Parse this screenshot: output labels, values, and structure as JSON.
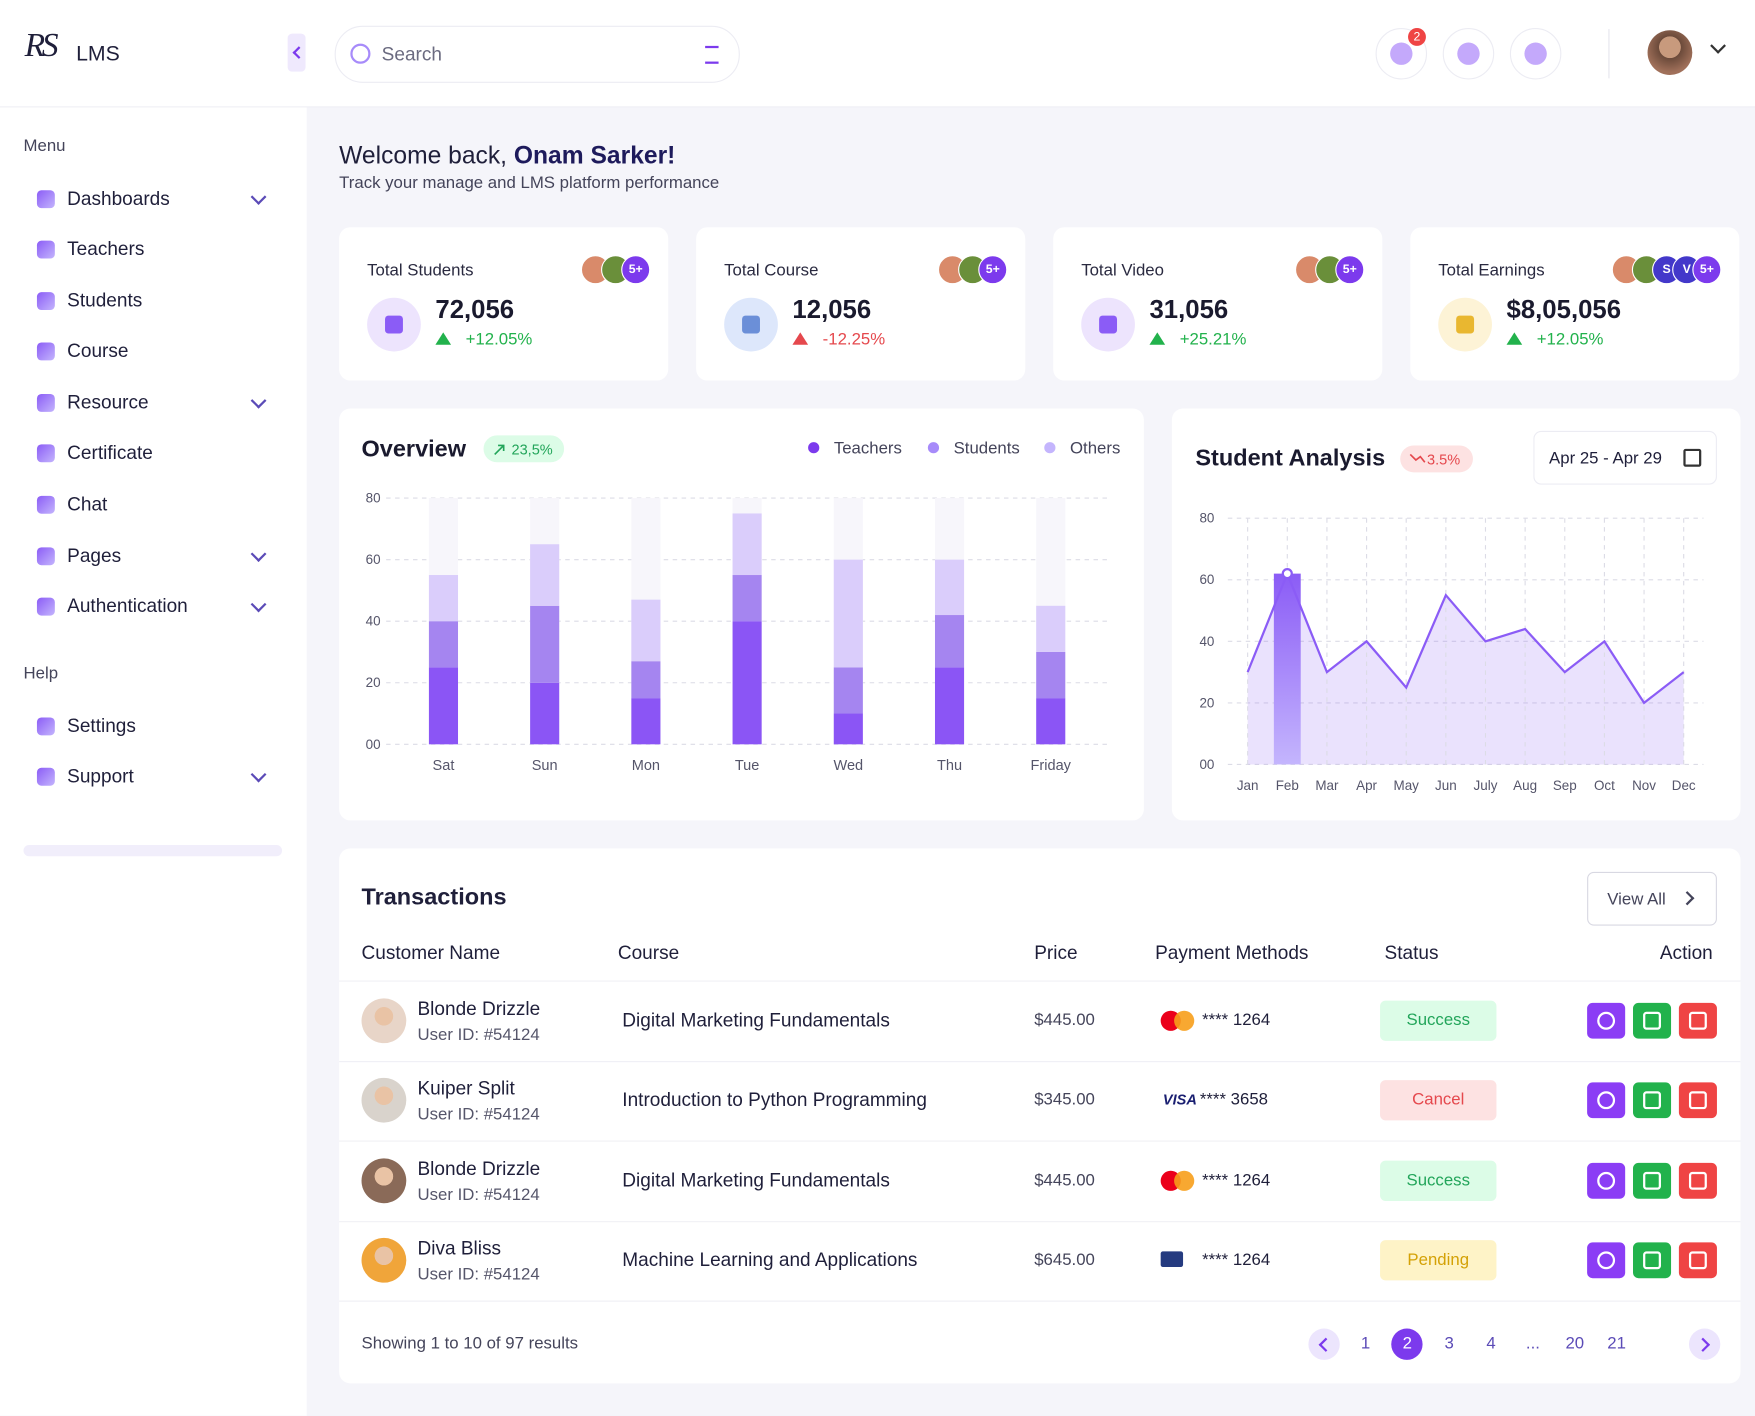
{
  "brand": {
    "mark": "RS",
    "name": "LMS"
  },
  "header": {
    "search_placeholder": "Search",
    "notification_count": 2
  },
  "sidebar": {
    "menu_title": "Menu",
    "menu": [
      {
        "label": "Dashboards",
        "has_submenu": true
      },
      {
        "label": "Teachers",
        "has_submenu": false
      },
      {
        "label": "Students",
        "has_submenu": false
      },
      {
        "label": "Course",
        "has_submenu": false
      },
      {
        "label": "Resource",
        "has_submenu": true
      },
      {
        "label": "Certificate",
        "has_submenu": false
      },
      {
        "label": "Chat",
        "has_submenu": false
      },
      {
        "label": "Pages",
        "has_submenu": true
      },
      {
        "label": "Authentication",
        "has_submenu": true
      }
    ],
    "help_title": "Help",
    "help": [
      {
        "label": "Settings",
        "has_submenu": false
      },
      {
        "label": "Support",
        "has_submenu": true
      }
    ]
  },
  "welcome": {
    "greeting": "Welcome back,",
    "name": "Onam Sarker!",
    "subtitle": "Track your manage and LMS platform performance"
  },
  "stats": [
    {
      "label": "Total Students",
      "value": "72,056",
      "change": "+12.05%",
      "trend": "up",
      "icon_bg": "#ede4fd",
      "badges": [
        "5+"
      ]
    },
    {
      "label": "Total Course",
      "value": "12,056",
      "change": "-12.25%",
      "trend": "down",
      "icon_bg": "#dde7fb",
      "badges": [
        "5+"
      ]
    },
    {
      "label": "Total Video",
      "value": "31,056",
      "change": "+25.21%",
      "trend": "up",
      "icon_bg": "#ede4fd",
      "badges": [
        "5+"
      ]
    },
    {
      "label": "Total Earnings",
      "value": "$8,05,056",
      "change": "+12.05%",
      "trend": "up",
      "icon_bg": "#fdf3d6",
      "badges": [
        "S",
        "V",
        "5+"
      ]
    }
  ],
  "overview": {
    "type": "bar",
    "stacked": true,
    "title": "Overview",
    "badge": "23,5%",
    "grid": true,
    "categories": [
      "Sat",
      "Sun",
      "Mon",
      "Tue",
      "Wed",
      "Thu",
      "Friday"
    ],
    "series": [
      {
        "name": "Teachers",
        "color": "#8b55f5",
        "legend_color": "#7c3aed",
        "values": [
          25,
          20,
          15,
          40,
          10,
          25,
          15
        ]
      },
      {
        "name": "Students",
        "color": "#a585f0",
        "legend_color": "#a78bfa",
        "values": [
          15,
          25,
          12,
          15,
          15,
          17,
          15
        ]
      },
      {
        "name": "Others",
        "color": "#dacdfb",
        "legend_color": "#c4b5fd",
        "values": [
          15,
          20,
          20,
          20,
          35,
          18,
          15
        ]
      }
    ],
    "ylim": [
      0,
      80
    ],
    "yticks": [
      {
        "value": 0,
        "label": "00"
      },
      20,
      40,
      60,
      80
    ]
  },
  "student_analysis": {
    "type": "area",
    "title": "Student Analysis",
    "badge": "3.5%",
    "date_range": "Apr 25 - Apr 29",
    "grid": true,
    "color": "#8b5cf6",
    "categories": [
      "Jan",
      "Feb",
      "Mar",
      "Apr",
      "May",
      "Jun",
      "July",
      "Aug",
      "Sep",
      "Oct",
      "Nov",
      "Dec"
    ],
    "values": [
      30,
      62,
      30,
      40,
      25,
      55,
      40,
      44,
      30,
      40,
      20,
      30
    ],
    "ylim": [
      0,
      80
    ],
    "yticks": [
      {
        "value": 0,
        "label": "00"
      },
      20,
      40,
      60,
      80
    ]
  },
  "transactions": {
    "title": "Transactions",
    "view_all": "View All",
    "columns": [
      "Customer Name",
      "Course",
      "Price",
      "Payment Methods",
      "Status",
      "Action"
    ],
    "rows": [
      {
        "name": "Blonde Drizzle",
        "user_id": "User ID: #54124",
        "course": "Digital Marketing Fundamentals",
        "price": "$445.00",
        "method": "mastercard",
        "card": "**** 1264",
        "status": "Success",
        "status_color": "#22a55a",
        "status_bg": "#dcfce7",
        "avatar": "#e8d5c8"
      },
      {
        "name": "Kuiper Split",
        "user_id": "User ID: #54124",
        "course": "Introduction to Python Programming",
        "price": "$345.00",
        "method": "visa",
        "brand_label": "VISA",
        "card": "**** 3658",
        "status": "Cancel",
        "status_color": "#e5484d",
        "status_bg": "#fde2e2",
        "avatar": "#d9d3cc"
      },
      {
        "name": "Blonde Drizzle",
        "user_id": "User ID: #54124",
        "course": "Digital Marketing Fundamentals",
        "price": "$445.00",
        "method": "mastercard",
        "card": "**** 1264",
        "status": "Success",
        "status_color": "#22a55a",
        "status_bg": "#dcfce7",
        "avatar": "#8a6a58"
      },
      {
        "name": "Diva Bliss",
        "user_id": "User ID: #54124",
        "course": "Machine Learning and Applications",
        "price": "$645.00",
        "method": "paypal",
        "card": "**** 1264",
        "status": "Pending",
        "status_color": "#d4a106",
        "status_bg": "#fef3c7",
        "avatar": "#f0a53a"
      }
    ],
    "summary": "Showing 1 to 10 of 97 results",
    "pages": [
      1,
      2,
      3,
      4,
      "...",
      20,
      21
    ],
    "current_page": 2
  }
}
